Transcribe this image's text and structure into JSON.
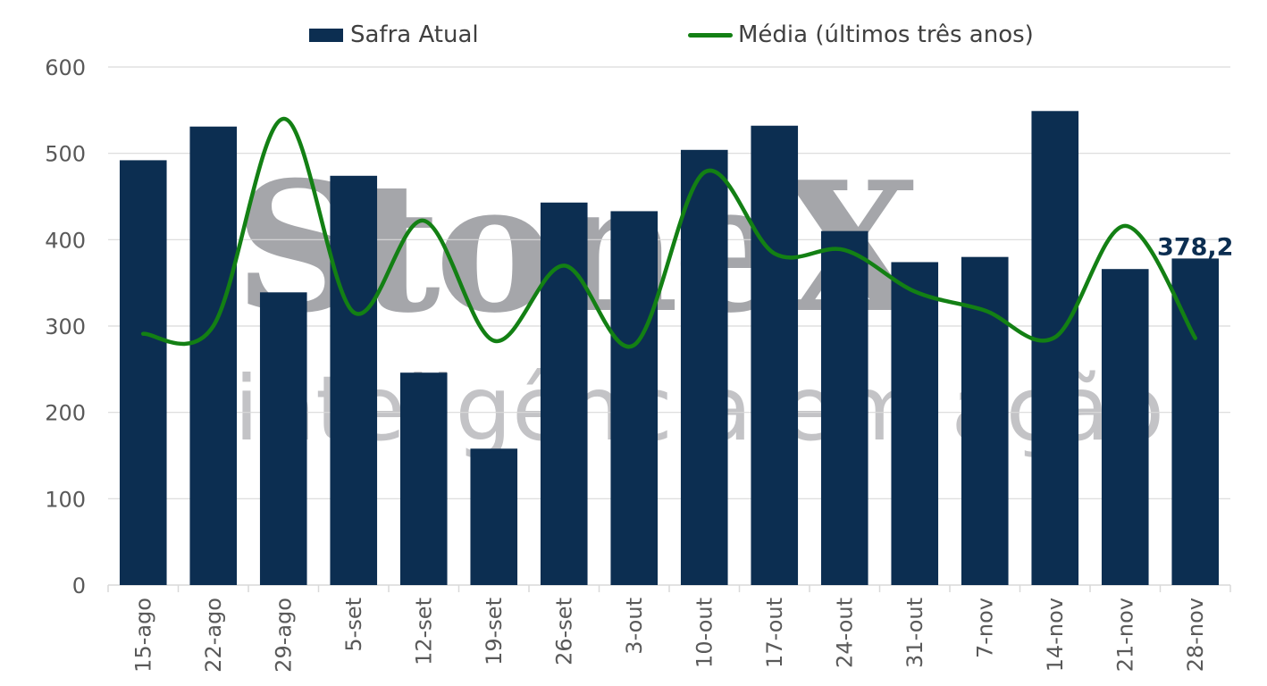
{
  "watermark": {
    "logo": "StoneX",
    "tagline": "inteligência em ação"
  },
  "legend": {
    "bar_label": "Safra Atual",
    "line_label": "Média (últimos três anos)"
  },
  "colors": {
    "bar": "#0c2e51",
    "line": "#138014",
    "axis_text": "#595959",
    "grid": "#d9d9d9",
    "data_label": "#0c2e51"
  },
  "chart_data": {
    "type": "bar",
    "categories": [
      "15-ago",
      "22-ago",
      "29-ago",
      "5-set",
      "12-set",
      "19-set",
      "26-set",
      "3-out",
      "10-out",
      "17-out",
      "24-out",
      "31-out",
      "7-nov",
      "14-nov",
      "21-nov",
      "28-nov"
    ],
    "series": [
      {
        "name": "Safra Atual",
        "type": "bar",
        "values": [
          492,
          531,
          339,
          474,
          246,
          158,
          443,
          433,
          504,
          532,
          410,
          374,
          380,
          549,
          366,
          378.2
        ]
      },
      {
        "name": "Média (últimos três anos)",
        "type": "line",
        "smooth": true,
        "values": [
          291,
          300,
          540,
          316,
          422,
          283,
          370,
          278,
          478,
          384,
          388,
          340,
          318,
          287,
          416,
          286
        ]
      }
    ],
    "ylim": [
      0,
      600
    ],
    "yticks": [
      0,
      100,
      200,
      300,
      400,
      500,
      600
    ],
    "grid": true,
    "legend_position": "top",
    "annotations": [
      {
        "category": "28-nov",
        "text": "378,2"
      }
    ]
  }
}
